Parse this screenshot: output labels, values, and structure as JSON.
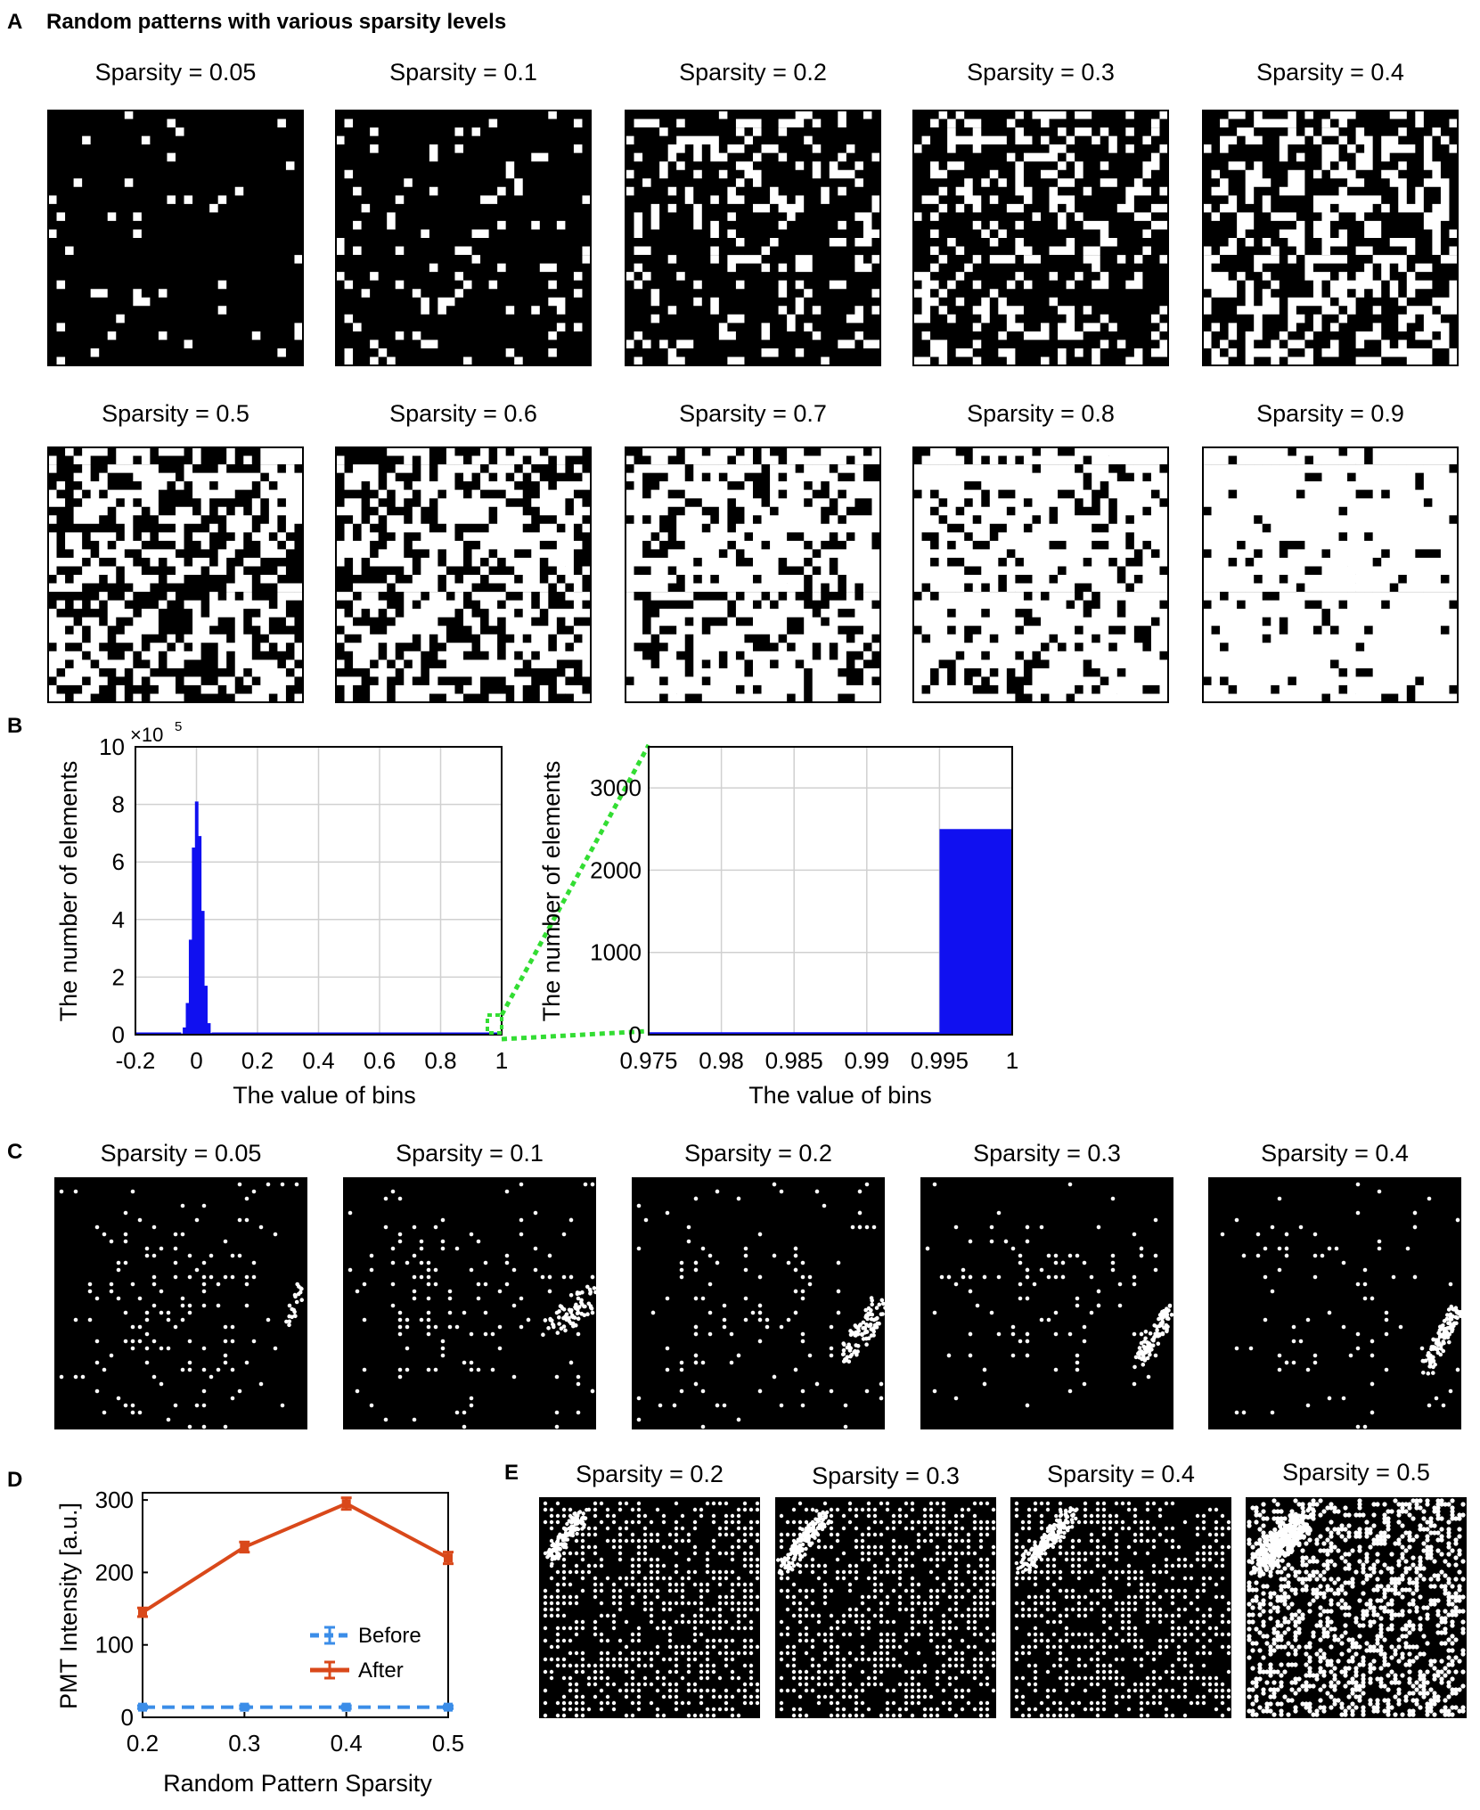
{
  "panelA": {
    "letter": "A",
    "heading": "Random patterns with various sparsity levels",
    "titles": [
      "Sparsity = 0.05",
      "Sparsity = 0.1",
      "Sparsity = 0.2",
      "Sparsity = 0.3",
      "Sparsity = 0.4",
      "Sparsity = 0.5",
      "Sparsity = 0.6",
      "Sparsity = 0.7",
      "Sparsity = 0.8",
      "Sparsity = 0.9"
    ],
    "sparsity": [
      0.05,
      0.1,
      0.2,
      0.3,
      0.4,
      0.5,
      0.6,
      0.7,
      0.8,
      0.9
    ]
  },
  "panelB": {
    "letter": "B",
    "left": {
      "ylabel": "The number of elements",
      "xlabel": "The value of bins",
      "xticks": [
        "-0.2",
        "0",
        "0.2",
        "0.4",
        "0.6",
        "0.8",
        "1"
      ],
      "yticks": [
        "0",
        "2",
        "4",
        "6",
        "8",
        "10"
      ],
      "exponent_base": "×10",
      "exponent_power": "5"
    },
    "right": {
      "ylabel": "The number of elements",
      "xlabel": "The value of bins",
      "xticks": [
        "0.975",
        "0.98",
        "0.985",
        "0.99",
        "0.995",
        "1"
      ],
      "yticks": [
        "0",
        "1000",
        "2000",
        "3000"
      ]
    }
  },
  "panelC": {
    "letter": "C",
    "titles": [
      "Sparsity = 0.05",
      "Sparsity = 0.1",
      "Sparsity = 0.2",
      "Sparsity = 0.3",
      "Sparsity = 0.4"
    ]
  },
  "panelD": {
    "letter": "D",
    "ylabel": "PMT Intensity [a.u.]",
    "xlabel": "Random Pattern Sparsity",
    "xticks": [
      "0.2",
      "0.3",
      "0.4",
      "0.5"
    ],
    "yticks": [
      "0",
      "100",
      "200",
      "300"
    ],
    "legend": [
      "Before",
      "After"
    ]
  },
  "panelE": {
    "letter": "E",
    "titles": [
      "Sparsity = 0.2",
      "Sparsity = 0.3",
      "Sparsity = 0.4",
      "Sparsity = 0.5"
    ]
  },
  "colors": {
    "before": "#3b8de8",
    "after": "#d9481a",
    "hist": "#1010f0",
    "zoom": "#33dd33"
  },
  "chart_data": [
    {
      "type": "bar",
      "panel": "B-left",
      "xlim": [
        -0.2,
        1
      ],
      "ylim": [
        0,
        1000000
      ],
      "x": [
        -0.05,
        -0.04,
        -0.03,
        -0.02,
        -0.01,
        0.0,
        0.01,
        0.02,
        0.03,
        0.04,
        0.05
      ],
      "values": [
        4000,
        25000,
        110000,
        330000,
        650000,
        810000,
        690000,
        430000,
        170000,
        40000,
        6000
      ],
      "grid": true
    },
    {
      "type": "bar",
      "panel": "B-right",
      "xlim": [
        0.975,
        1
      ],
      "ylim": [
        0,
        3500
      ],
      "x": [
        0.9975
      ],
      "values": [
        2500
      ],
      "grid": true
    },
    {
      "type": "line",
      "panel": "D",
      "x": [
        0.2,
        0.3,
        0.4,
        0.5
      ],
      "xlim": [
        0.2,
        0.5
      ],
      "ylim": [
        0,
        300
      ],
      "series": [
        {
          "name": "Before",
          "values": [
            14,
            14,
            14,
            14
          ],
          "error": [
            2,
            2,
            2,
            2
          ]
        },
        {
          "name": "After",
          "values": [
            145,
            235,
            295,
            220
          ],
          "error": [
            6,
            7,
            8,
            8
          ]
        }
      ],
      "grid": false,
      "legend_position": "right"
    }
  ]
}
